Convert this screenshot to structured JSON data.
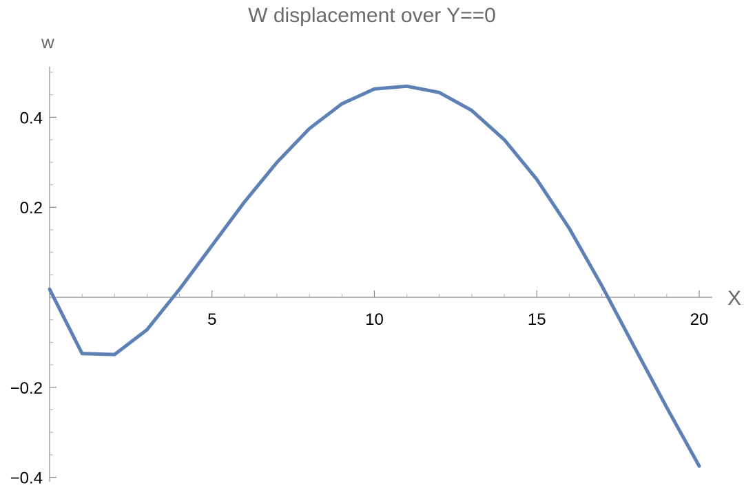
{
  "chart_data": {
    "type": "line",
    "title": "W displacement over Y==0",
    "xlabel": "X",
    "ylabel": "w",
    "xlim": [
      0,
      20.4
    ],
    "ylim": [
      -0.4,
      0.5
    ],
    "x_ticks": [
      5,
      10,
      15,
      20
    ],
    "x_tick_labels": [
      "5",
      "10",
      "15",
      "20"
    ],
    "y_ticks": [
      -0.4,
      -0.2,
      0.2,
      0.4
    ],
    "y_tick_labels": [
      "−0.4",
      "−0.2",
      "0.2",
      "0.4"
    ],
    "grid": false,
    "colors": {
      "line": "#5e81b5",
      "axis": "#888888",
      "title": "#6a6a6a"
    },
    "series": [
      {
        "x": [
          0,
          1,
          2,
          3,
          4,
          5,
          6,
          7,
          8,
          9,
          10,
          11,
          12,
          13,
          14,
          15,
          16,
          17,
          18,
          19,
          20
        ],
        "values": [
          0.018,
          -0.125,
          -0.127,
          -0.072,
          0.018,
          0.115,
          0.212,
          0.3,
          0.375,
          0.43,
          0.463,
          0.469,
          0.455,
          0.415,
          0.35,
          0.262,
          0.153,
          0.026,
          -0.11,
          -0.245,
          -0.375
        ]
      }
    ]
  }
}
